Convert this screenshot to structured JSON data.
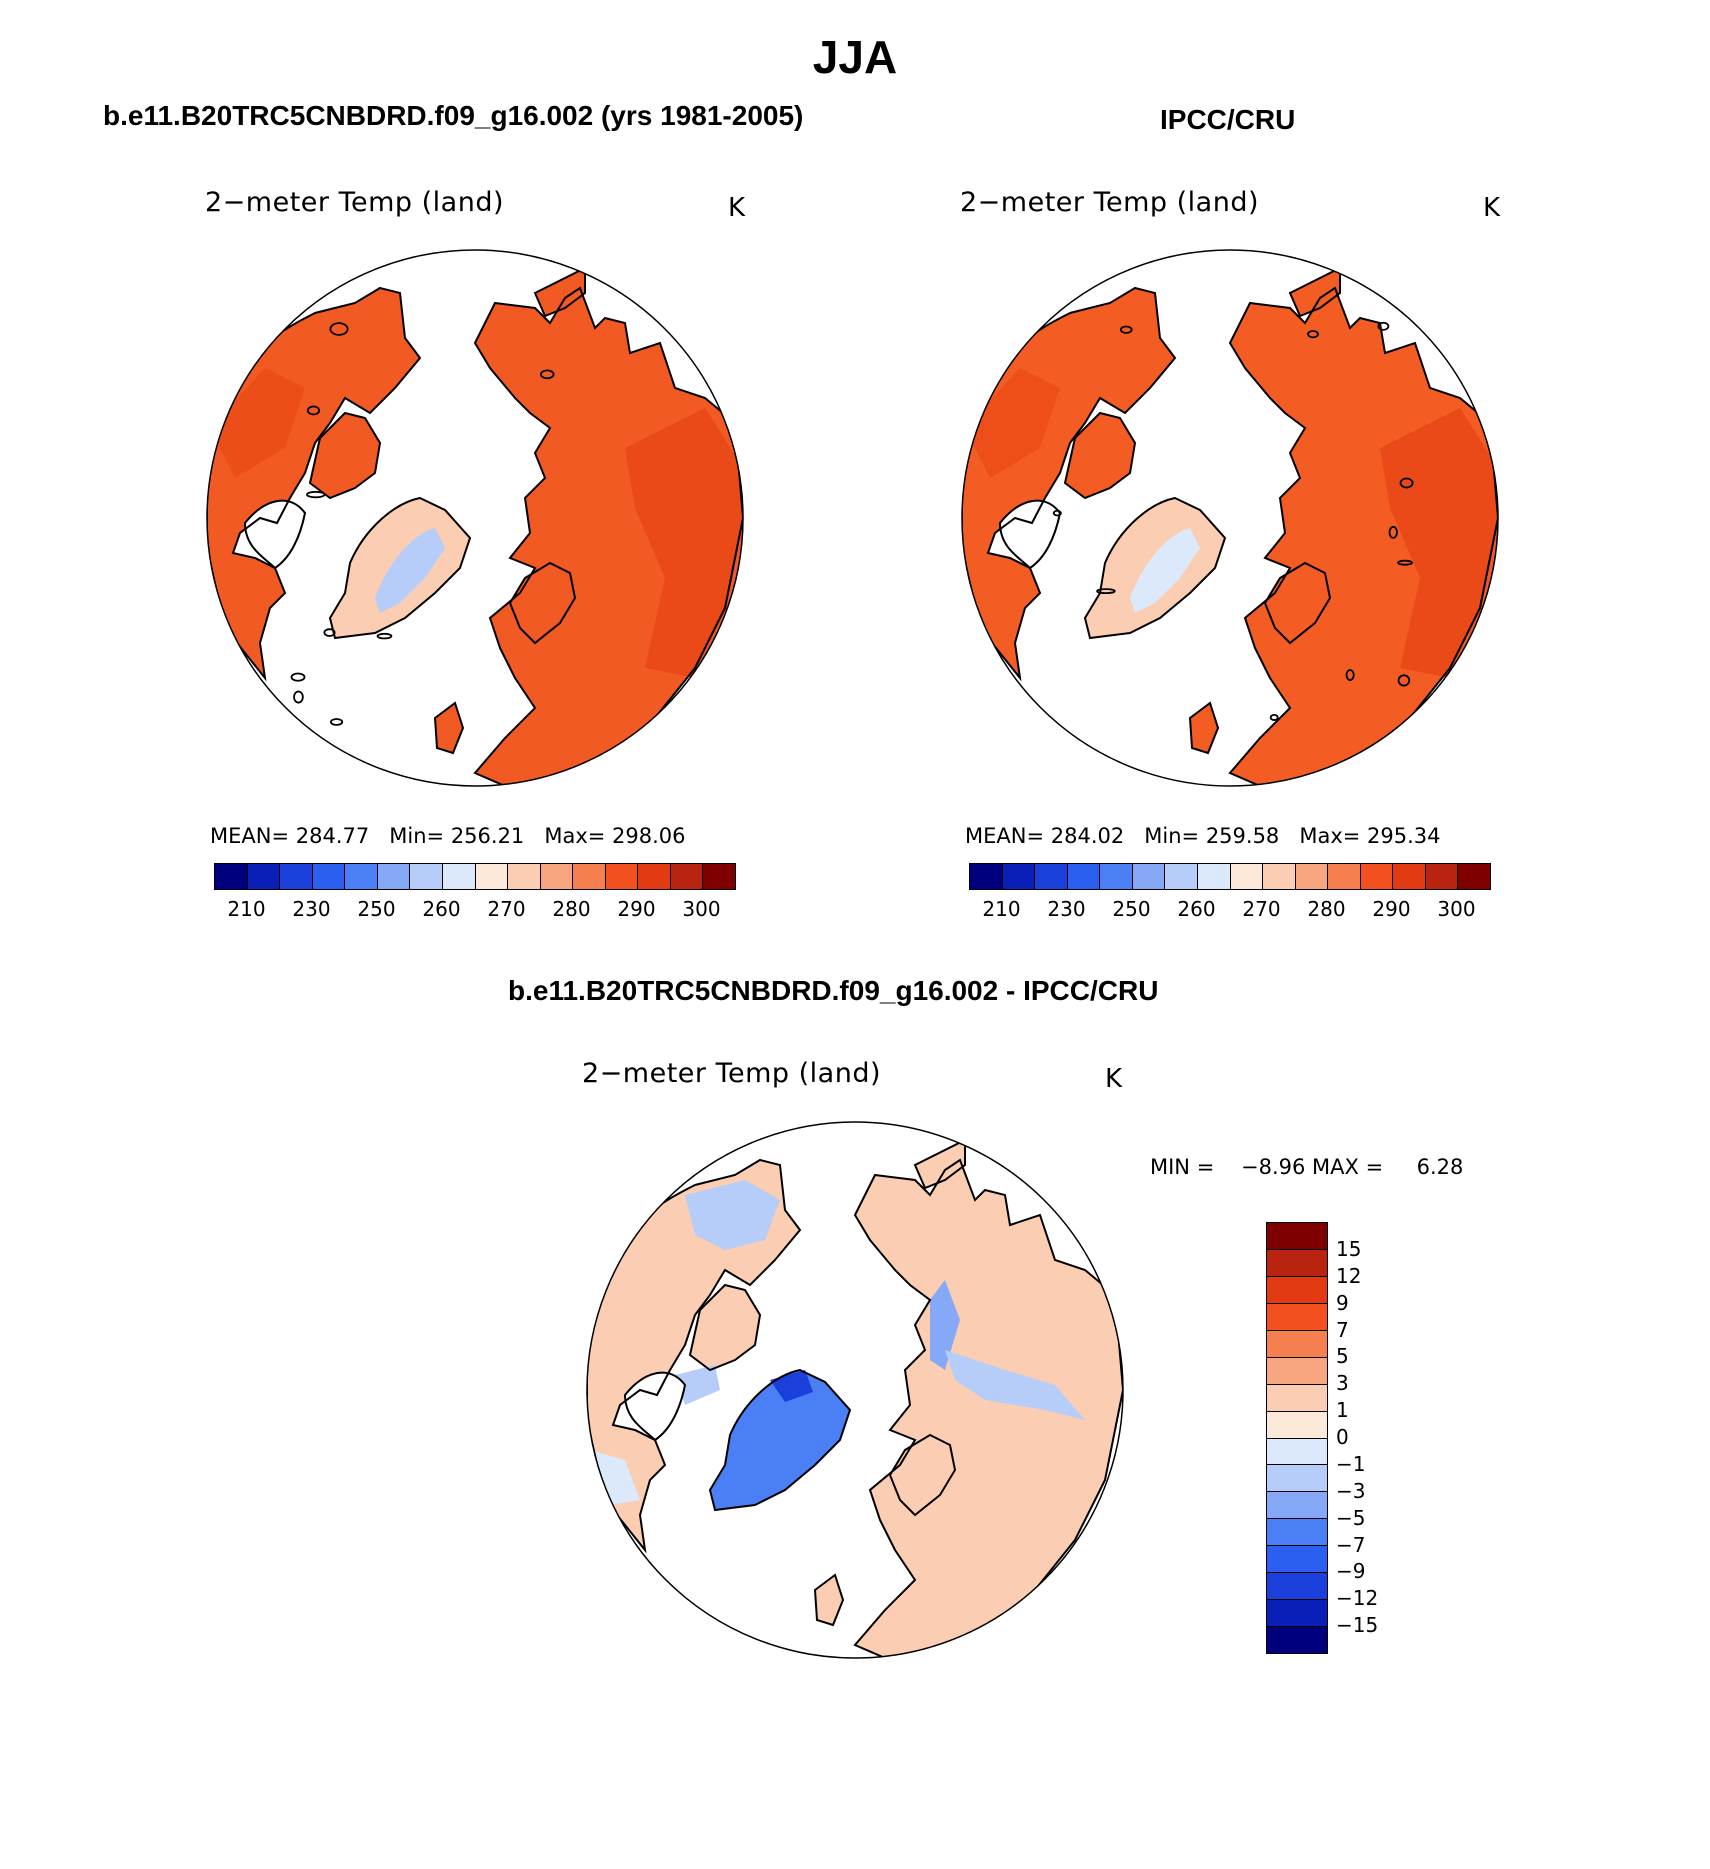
{
  "figure": {
    "title": "JJA",
    "panel_left_header": "b.e11.B20TRC5CNBDRD.f09_g16.002 (yrs 1981-2005)",
    "panel_right_header": "IPCC/CRU",
    "panel_diff_header": "b.e11.B20TRC5CNBDRD.f09_g16.002 - IPCC/CRU"
  },
  "colors": {
    "abs_scale": [
      "#00007f",
      "#0a1fb7",
      "#1a3fdb",
      "#2a5ff0",
      "#4a7ff5",
      "#85a8f7",
      "#b5cdf8",
      "#dbe9fa",
      "#fde9d9",
      "#fbcdb2",
      "#f8a67f",
      "#f67f4f",
      "#f2501e",
      "#e23a12",
      "#b82410",
      "#7f0000"
    ],
    "diff_scale": [
      "#7f0000",
      "#b82410",
      "#e23a12",
      "#f2501e",
      "#f67f4f",
      "#f8a67f",
      "#fbcdb2",
      "#fde9d9",
      "#dbe9fa",
      "#b5cdf8",
      "#85a8f7",
      "#4a7ff5",
      "#2a5ff0",
      "#1a3fdb",
      "#0a1fb7",
      "#00007f"
    ],
    "model_land": "#f15a22",
    "model_land_warm": "#e94817",
    "obs_land": "#f35d23",
    "diff_land": "#fbcdb2",
    "coast": "#000000"
  },
  "panels": [
    {
      "id": "model",
      "plot_title": "2−meter Temp (land)",
      "units": "K",
      "mean_label": "MEAN=",
      "mean": "284.77",
      "min_label": "Min=",
      "min": "256.21",
      "max_label": "Max=",
      "max": "298.06",
      "ticks": [
        "210",
        "230",
        "250",
        "260",
        "270",
        "280",
        "290",
        "300"
      ]
    },
    {
      "id": "obs",
      "plot_title": "2−meter Temp (land)",
      "units": "K",
      "mean_label": "MEAN=",
      "mean": "284.02",
      "min_label": "Min=",
      "min": "259.58",
      "max_label": "Max=",
      "max": "295.34",
      "ticks": [
        "210",
        "230",
        "250",
        "260",
        "270",
        "280",
        "290",
        "300"
      ]
    }
  ],
  "diff_panel": {
    "plot_title": "2−meter Temp (land)",
    "units": "K",
    "min_label": "MIN =",
    "min": "−8.96",
    "max_label": "MAX =",
    "max": "6.28",
    "ticks": [
      "15",
      "12",
      "9",
      "7",
      "5",
      "3",
      "1",
      "0",
      "−1",
      "−3",
      "−5",
      "−7",
      "−9",
      "−12",
      "−15"
    ]
  }
}
